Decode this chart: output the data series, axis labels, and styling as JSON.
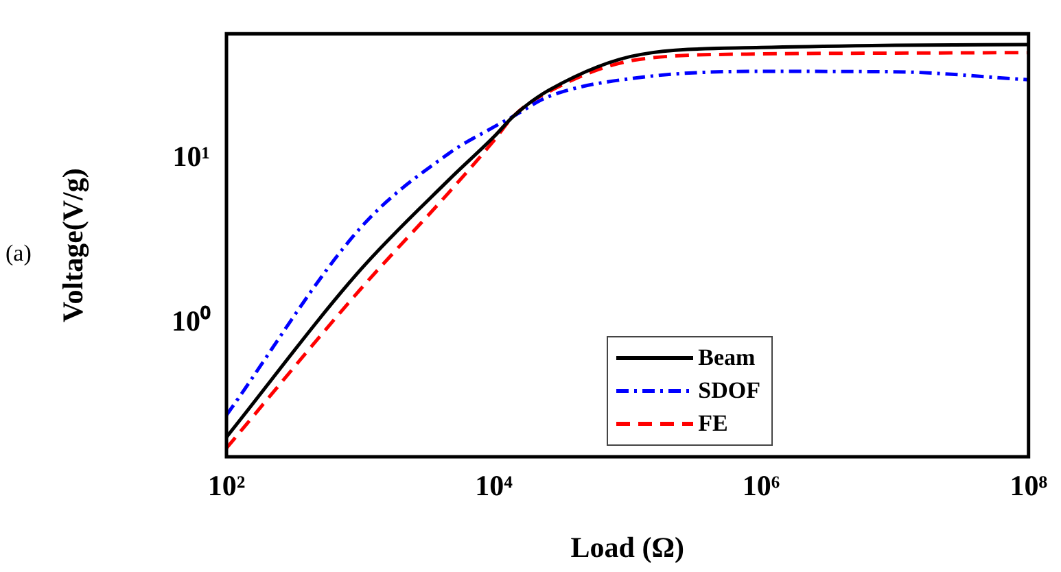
{
  "chart_data": {
    "type": "line",
    "xlabel": "Load (Ω)",
    "ylabel": "Voltage(V/g)",
    "log": "xy",
    "x": [
      100,
      1000,
      4600,
      10000,
      14000,
      26000,
      126000,
      1000000,
      10000000,
      100000000
    ],
    "series": [
      {
        "name": "Beam",
        "color": "#000000",
        "line_style": "solid",
        "values": [
          0.204,
          2.1,
          7.4,
          13.5,
          18,
          26,
          42.7,
          47,
          48.5,
          49
        ]
      },
      {
        "name": "SDOF",
        "color": "#0000ff",
        "line_style": "dashdot",
        "values": [
          0.277,
          3.77,
          10.7,
          15.5,
          18,
          23.8,
          31,
          33.7,
          33.5,
          30
        ]
      },
      {
        "name": "FE",
        "color": "#ff0000",
        "line_style": "dashed",
        "values": [
          0.175,
          1.6,
          6.2,
          12.8,
          18,
          25.5,
          40,
          43,
          43.5,
          43.8
        ]
      }
    ],
    "xlim": [
      100,
      100000000
    ],
    "xticks": [
      {
        "value": 100,
        "label": "10²"
      },
      {
        "value": 10000,
        "label": "10⁴"
      },
      {
        "value": 1000000,
        "label": "10⁶"
      },
      {
        "value": 100000000,
        "label": "10⁸"
      }
    ],
    "ylim": [
      0.155,
      57
    ],
    "yticks": [
      {
        "value": 1,
        "label": "10⁰"
      },
      {
        "value": 10,
        "label": "10¹"
      }
    ],
    "grid": false,
    "legend": "bottom",
    "marker": "none",
    "annotations": [
      "(a)"
    ]
  }
}
